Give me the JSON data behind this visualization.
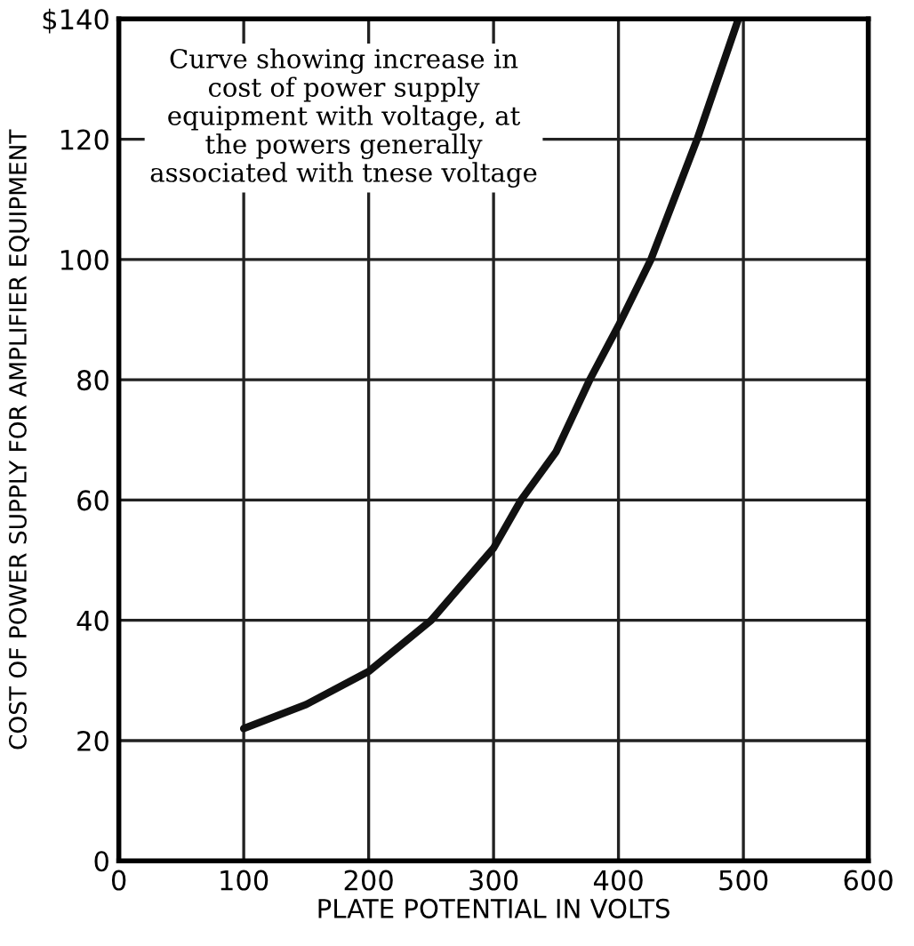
{
  "chart_data": {
    "type": "line",
    "xlabel": "PLATE POTENTIAL IN VOLTS",
    "ylabel": "COST OF POWER SUPPLY FOR AMPLIFIER EQUIPMENT",
    "annotations": [
      "Curve showing increase in\ncost of power supply\nequipment with voltage, at\nthe powers generally\nassociated with tnese voltage"
    ],
    "x": [
      100,
      150,
      200,
      250,
      300,
      322,
      350,
      377,
      400,
      426,
      463,
      496
    ],
    "series": [
      {
        "color": "#111111",
        "values": [
          22,
          26,
          31.5,
          40,
          52,
          60,
          68,
          80,
          89,
          100,
          120,
          140
        ]
      }
    ],
    "xlim": [
      0,
      600
    ],
    "xticks": [
      0,
      100,
      200,
      300,
      400,
      500,
      600
    ],
    "ylim": [
      0,
      140
    ],
    "yticks": [
      0,
      20,
      40,
      60,
      80,
      100,
      120,
      {
        "value": 140,
        "label": "$140"
      }
    ],
    "grid": true,
    "marker": "none",
    "line_style": "solid"
  }
}
